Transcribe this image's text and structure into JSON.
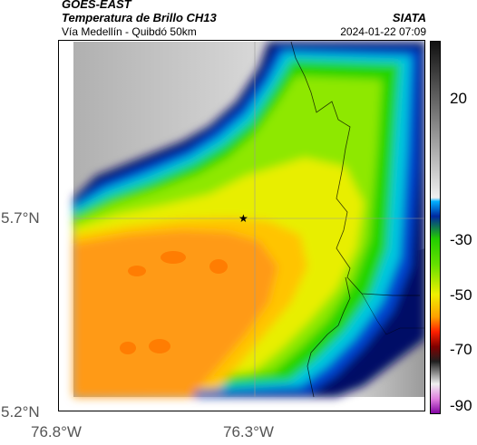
{
  "header": {
    "satellite": "GOES-EAST",
    "product": "Temperatura de Brillo CH13",
    "region": "Vía Medellín - Quibdó 50km",
    "agency": "SIATA",
    "datetime": "2024-01-22 07:09"
  },
  "axes": {
    "lat_labels": [
      "5.7°N",
      "5.2°N"
    ],
    "lon_labels": [
      "76.8°W",
      "76.3°W"
    ]
  },
  "colorbar": {
    "tick_labels": [
      "20",
      "-30",
      "-50",
      "-70",
      "-90"
    ]
  },
  "colors": {
    "warm_orange": "#ff9a1a",
    "yellow": "#f5ee00",
    "green": "#22dd00",
    "cyan": "#00cfe0",
    "blue": "#0030c0",
    "navy": "#001070"
  },
  "marker": {
    "icon": "star-icon"
  }
}
